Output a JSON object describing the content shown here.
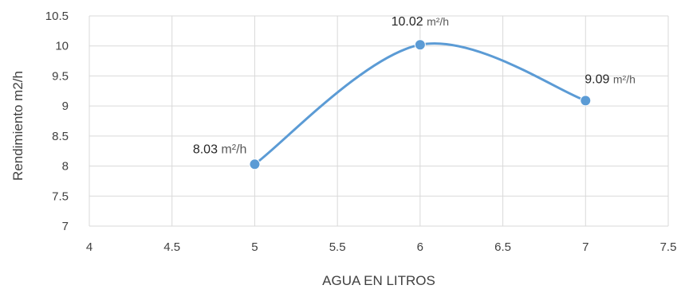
{
  "chart_data": {
    "type": "scatter",
    "title": "",
    "xlabel": "AGUA EN LITROS",
    "ylabel": "Rendimiento m2/h",
    "xlim": [
      4,
      7.5
    ],
    "ylim": [
      7,
      10.5
    ],
    "xticks": [
      "4",
      "4.5",
      "5",
      "5.5",
      "6",
      "6.5",
      "7",
      "7.5"
    ],
    "yticks": [
      "7",
      "7.5",
      "8",
      "8.5",
      "9",
      "9.5",
      "10",
      "10.5"
    ],
    "grid": true,
    "smooth_line": true,
    "series": [
      {
        "color": "#5b9bd5",
        "points": [
          {
            "x": 5,
            "y": 8.03,
            "label_value": "8.03",
            "label_unit": "m²/h"
          },
          {
            "x": 6,
            "y": 10.02,
            "label_value": "10.02",
            "label_unit": "m²/h"
          },
          {
            "x": 7,
            "y": 9.09,
            "label_value": "9.09",
            "label_unit": "m²/h"
          }
        ]
      }
    ]
  }
}
